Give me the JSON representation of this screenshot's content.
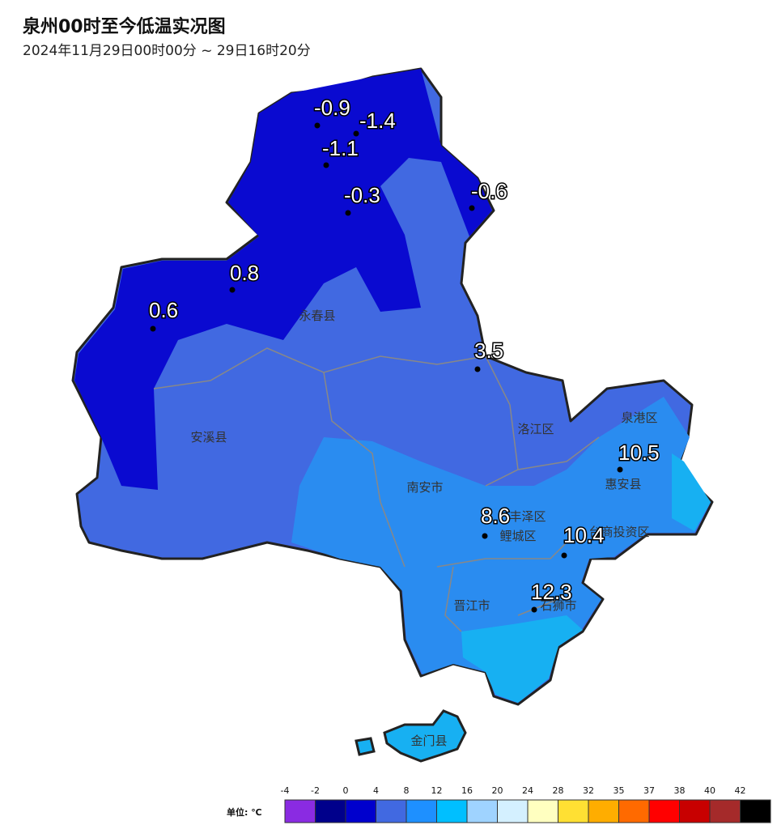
{
  "header": {
    "title": "泉州00时至今低温实况图",
    "subtitle": "2024年11月29日00时00分 ~ 29日16时20分"
  },
  "stations": [
    {
      "value": -0.9
    },
    {
      "value": -1.4
    },
    {
      "value": -1.1
    },
    {
      "value": -0.3
    },
    {
      "value": -0.6
    },
    {
      "value": 0.8
    },
    {
      "value": 0.6
    },
    {
      "value": 3.5
    },
    {
      "value": 8.6
    },
    {
      "value": 10.5
    },
    {
      "value": 10.4
    },
    {
      "value": 12.3
    }
  ],
  "districts": [
    "永春县",
    "安溪县",
    "南安市",
    "洛江区",
    "泉港区",
    "惠安县",
    "丰泽区",
    "鲤城区",
    "台商投资区",
    "晋江市",
    "石狮市",
    "金门县"
  ],
  "legend": {
    "unit": "单位: ℃",
    "items": [
      {
        "value": -4,
        "color": "#8a2be2"
      },
      {
        "value": -2,
        "color": "#00008b"
      },
      {
        "value": 0,
        "color": "#0000cd"
      },
      {
        "value": 4,
        "color": "#4169e1"
      },
      {
        "value": 8,
        "color": "#1e90ff"
      },
      {
        "value": 12,
        "color": "#00bfff"
      },
      {
        "value": 16,
        "color": "#9fd3ff"
      },
      {
        "value": 20,
        "color": "#d4f0ff"
      },
      {
        "value": 24,
        "color": "#ffffc0"
      },
      {
        "value": 28,
        "color": "#ffe033"
      },
      {
        "value": 32,
        "color": "#ffad00"
      },
      {
        "value": 35,
        "color": "#ff6a00"
      },
      {
        "value": 37,
        "color": "#ff0000"
      },
      {
        "value": 38,
        "color": "#c80000"
      },
      {
        "value": 40,
        "color": "#a52a2a"
      },
      {
        "value": 42,
        "color": "#000000"
      }
    ]
  }
}
